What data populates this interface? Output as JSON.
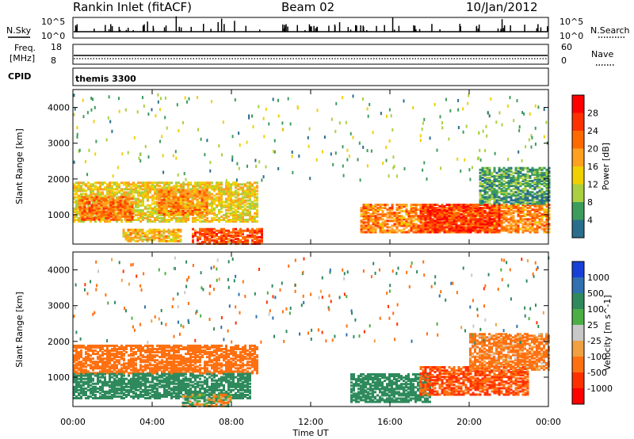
{
  "header": {
    "title": "Rankin Inlet (fitACF)",
    "beam": "Beam 02",
    "date": "10/Jan/2012"
  },
  "nsky_panel": {
    "left_label": "N.Sky",
    "right_label": "N.Search",
    "left_ticks": [
      "10^5",
      "10^0"
    ],
    "right_ticks": [
      "10^5",
      "10^0"
    ]
  },
  "freq_panel": {
    "left_label_line1": "Freq.",
    "left_label_line2": "[MHz]",
    "right_label": "Nave",
    "left_ticks": [
      "18",
      "8"
    ],
    "right_ticks": [
      "60",
      "0"
    ]
  },
  "cpid_panel": {
    "label": "CPID",
    "value": "themis 3300"
  },
  "power_panel": {
    "ylabel": "Slant Range [km]",
    "colorbar_label": "Power [dB]",
    "colorbar_ticks": [
      "28",
      "24",
      "20",
      "16",
      "12",
      "8",
      "4"
    ],
    "colorbar_colors": [
      "#ff0000",
      "#ff3000",
      "#ff6a00",
      "#ffa020",
      "#f0d000",
      "#a8d040",
      "#3c9c5c",
      "#2a6e8c",
      "#1030d0"
    ]
  },
  "velocity_panel": {
    "ylabel": "Slant Range [km]",
    "colorbar_label": "Velocity [m s^-1]",
    "colorbar_ticks": [
      "1000",
      "500",
      "100",
      "25",
      "-25",
      "-100",
      "-500",
      "-1000"
    ],
    "colorbar_colors": [
      "#1840d8",
      "#3070b0",
      "#2e8a5c",
      "#4cae44",
      "#c8c8c8",
      "#f0a040",
      "#ff7010",
      "#ff3000",
      "#ff0000"
    ]
  },
  "xaxis": {
    "label": "Time UT",
    "ticks": [
      "00:00",
      "04:00",
      "08:00",
      "12:00",
      "16:00",
      "20:00",
      "00:00"
    ]
  },
  "chart_data": {
    "type": "heatmap",
    "title": "Rankin Inlet (fitACF)",
    "x_range_hours": [
      0,
      24
    ],
    "y_range_km": [
      180,
      4500
    ],
    "y_ticks_km": [
      1000,
      2000,
      3000,
      4000
    ],
    "power_regions_db": [
      {
        "t0": 0.0,
        "t1": 9.3,
        "r0": 800,
        "r1": 1900,
        "db": 18
      },
      {
        "t0": 0.3,
        "t1": 3.0,
        "r0": 850,
        "r1": 1500,
        "db": 26
      },
      {
        "t0": 4.3,
        "t1": 6.8,
        "r0": 1000,
        "r1": 1700,
        "db": 24
      },
      {
        "t0": 2.5,
        "t1": 5.5,
        "r0": 250,
        "r1": 600,
        "db": 20
      },
      {
        "t0": 6.0,
        "t1": 9.5,
        "r0": 180,
        "r1": 600,
        "db": 28
      },
      {
        "t0": 14.5,
        "t1": 24.0,
        "r0": 500,
        "r1": 1300,
        "db": 24
      },
      {
        "t0": 17.5,
        "t1": 21.5,
        "r0": 500,
        "r1": 1300,
        "db": 30
      },
      {
        "t0": 20.5,
        "t1": 24.0,
        "r0": 1300,
        "r1": 2300,
        "db": 10
      }
    ],
    "velocity_regions_ms": [
      {
        "t0": 0.0,
        "t1": 9.3,
        "r0": 1100,
        "r1": 1900,
        "v": -300
      },
      {
        "t0": 0.0,
        "t1": 9.0,
        "r0": 400,
        "r1": 1100,
        "v": 300
      },
      {
        "t0": 5.5,
        "t1": 8.0,
        "r0": 180,
        "r1": 500,
        "v": 10
      },
      {
        "t0": 14.0,
        "t1": 18.0,
        "r0": 300,
        "r1": 1100,
        "v": 300
      },
      {
        "t0": 17.5,
        "t1": 23.0,
        "r0": 500,
        "r1": 1300,
        "v": -500
      },
      {
        "t0": 20.0,
        "t1": 24.0,
        "r0": 1200,
        "r1": 2200,
        "v": -200
      }
    ]
  }
}
